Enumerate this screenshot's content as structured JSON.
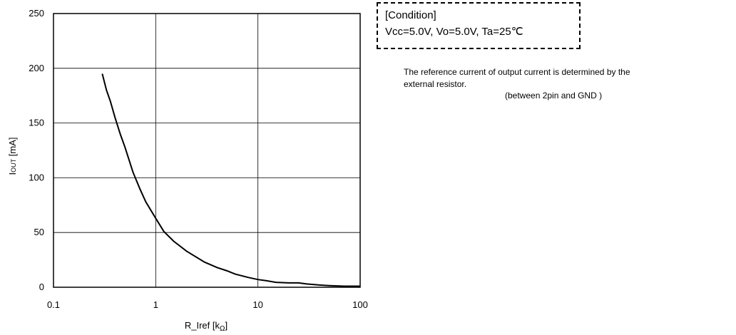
{
  "chart_data": {
    "type": "line",
    "xscale": "log",
    "xlim": [
      0.1,
      100
    ],
    "ylim": [
      0,
      250
    ],
    "xticks": [
      {
        "value": 0.1,
        "label": "0.1"
      },
      {
        "value": 1,
        "label": "1"
      },
      {
        "value": 10,
        "label": "10"
      },
      {
        "value": 100,
        "label": "100"
      }
    ],
    "yticks": [
      {
        "value": 0,
        "label": "0"
      },
      {
        "value": 50,
        "label": "50"
      },
      {
        "value": 100,
        "label": "100"
      },
      {
        "value": 150,
        "label": "150"
      },
      {
        "value": 200,
        "label": "200"
      },
      {
        "value": 250,
        "label": "250"
      }
    ],
    "xlabel": {
      "main": "R_Iref [k",
      "sub": "Ω",
      "close": "]"
    },
    "ylabel": {
      "main": "I",
      "sub": "OUT",
      "rest": " [mA]"
    },
    "grid": true,
    "series": [
      {
        "x": [
          0.3,
          0.33,
          0.36,
          0.4,
          0.45,
          0.5,
          0.55,
          0.6,
          0.7,
          0.8,
          1.0,
          1.2,
          1.5,
          2.0,
          3.0,
          4.0,
          5.0,
          6.0,
          8.0,
          10,
          12,
          15,
          20,
          25,
          30,
          40,
          50,
          70,
          100
        ],
        "y": [
          195,
          180,
          170,
          155,
          140,
          128,
          116,
          105,
          90,
          78,
          63,
          51,
          42,
          33,
          23,
          18,
          15,
          12,
          9,
          7,
          6,
          4.5,
          4,
          4,
          3,
          2,
          1.5,
          1,
          1
        ]
      }
    ]
  },
  "condition_box": {
    "title": "[Condition]",
    "values": "Vcc=5.0V, Vo=5.0V, Ta=25℃"
  },
  "note": {
    "line1": "The reference current of output current is determined by the",
    "line2": "external resistor.",
    "line3": "(between 2pin and GND )"
  }
}
